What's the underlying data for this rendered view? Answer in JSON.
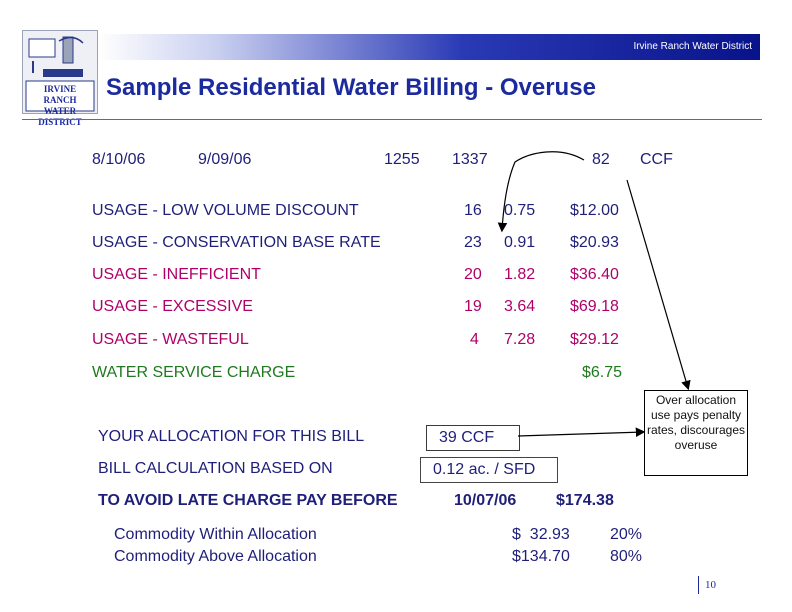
{
  "header": {
    "org": "Irvine Ranch Water District",
    "title": "Sample Residential Water Billing - Overuse",
    "logo_text": "IRVINE RANCH WATER DISTRICT"
  },
  "meter": {
    "from_date": "8/10/06",
    "to_date": "9/09/06",
    "prev_read": "1255",
    "curr_read": "1337",
    "usage": "82",
    "unit": "CCF"
  },
  "tiers": [
    {
      "label": "USAGE - LOW VOLUME DISCOUNT",
      "ccf": "16",
      "rate": "0.75",
      "amount": "$12.00"
    },
    {
      "label": "USAGE - CONSERVATION BASE RATE",
      "ccf": "23",
      "rate": "0.91",
      "amount": "$20.93"
    },
    {
      "label": "USAGE - INEFFICIENT",
      "ccf": "20",
      "rate": "1.82",
      "amount": "$36.40"
    },
    {
      "label": "USAGE - EXCESSIVE",
      "ccf": "19",
      "rate": "3.64",
      "amount": "$69.18"
    },
    {
      "label": "USAGE - WASTEFUL",
      "ccf": "4",
      "rate": "7.28",
      "amount": "$29.12"
    }
  ],
  "service_charge": {
    "label": "WATER SERVICE CHARGE",
    "amount": "$6.75"
  },
  "allocation": {
    "label": "YOUR ALLOCATION FOR THIS BILL",
    "value": "39  CCF"
  },
  "calc": {
    "label": "BILL CALCULATION BASED ON",
    "value": "0.12  ac. / SFD"
  },
  "due": {
    "label": "TO AVOID LATE CHARGE PAY BEFORE",
    "date": "10/07/06",
    "total": "$174.38"
  },
  "commodity": [
    {
      "label": "Commodity Within Allocation",
      "amount": "$  32.93",
      "pct": "20%"
    },
    {
      "label": "Commodity Above Allocation",
      "amount": "$134.70",
      "pct": "80%"
    }
  ],
  "callout": "Over allocation use pays penalty rates, discourages overuse",
  "page_number": "10",
  "colors": {
    "navy": "#1f1f7a",
    "magenta": "#b0006a",
    "green": "#1f7a1f",
    "title_blue": "#1b2a9e"
  }
}
